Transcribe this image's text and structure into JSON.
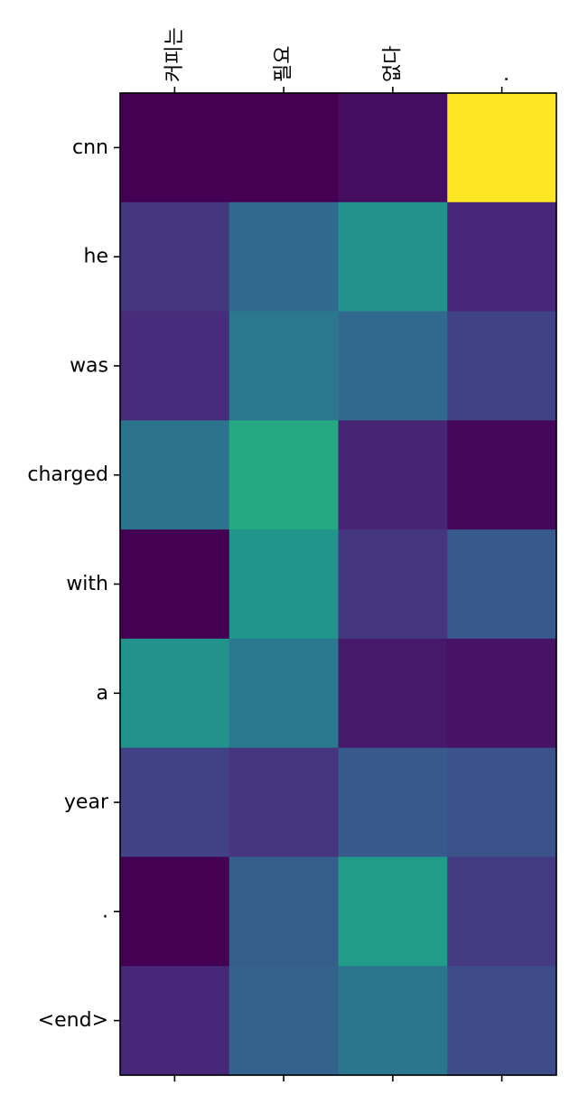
{
  "chart_data": {
    "type": "heatmap",
    "title": "",
    "xlabel": "",
    "ylabel": "",
    "x_tick_position": "top-and-bottom",
    "x_labels_position": "top",
    "x_labels_rotation": "vertical",
    "colormap": "viridis",
    "vmin": 0.0,
    "vmax": 0.95,
    "grid": false,
    "legend": "none",
    "x_categories": [
      "커피는",
      "필요",
      "없다",
      "."
    ],
    "y_categories": [
      "cnn",
      "he",
      "was",
      "charged",
      "with",
      "a",
      "year",
      ".",
      "<end>"
    ],
    "values": [
      [
        0.0,
        0.0,
        0.04,
        0.95
      ],
      [
        0.19,
        0.4,
        0.6,
        0.13
      ],
      [
        0.15,
        0.47,
        0.4,
        0.23
      ],
      [
        0.45,
        0.72,
        0.12,
        0.02
      ],
      [
        0.0,
        0.61,
        0.19,
        0.33
      ],
      [
        0.6,
        0.48,
        0.08,
        0.06
      ],
      [
        0.23,
        0.18,
        0.33,
        0.3
      ],
      [
        0.0,
        0.35,
        0.65,
        0.2
      ],
      [
        0.13,
        0.37,
        0.46,
        0.27
      ]
    ]
  }
}
